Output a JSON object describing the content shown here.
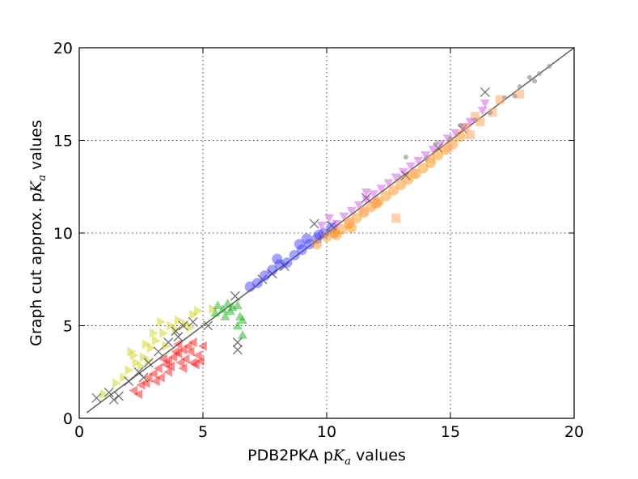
{
  "chart_data": {
    "type": "scatter",
    "xlabel": "PDB2PKA p",
    "xlabel_sym": "K",
    "xlabel_sub": "a",
    "xlabel_tail": " values",
    "ylabel": "Graph cut approx. p",
    "ylabel_sym": "K",
    "ylabel_sub": "a",
    "ylabel_tail": " values",
    "xlim": [
      0,
      20
    ],
    "ylim": [
      0,
      20
    ],
    "xticks": [
      0,
      5,
      10,
      15,
      20
    ],
    "yticks": [
      0,
      5,
      10,
      15,
      20
    ],
    "grid": true,
    "reference_line": {
      "from": [
        0.3,
        0.3
      ],
      "to": [
        20,
        20
      ],
      "color": "#666666"
    },
    "series": [
      {
        "marker": "triangle-left",
        "color": "#ff0000",
        "points": [
          [
            2.2,
            1.5
          ],
          [
            2.5,
            1.8
          ],
          [
            2.8,
            2.2
          ],
          [
            3.0,
            2.4
          ],
          [
            3.2,
            2.7
          ],
          [
            3.5,
            2.9
          ],
          [
            3.6,
            3.1
          ],
          [
            3.8,
            3.3
          ],
          [
            4.0,
            3.5
          ],
          [
            4.2,
            3.7
          ],
          [
            4.4,
            3.9
          ],
          [
            4.5,
            3.6
          ],
          [
            4.6,
            4.1
          ],
          [
            4.8,
            3.4
          ],
          [
            3.3,
            2.2
          ],
          [
            3.7,
            2.8
          ],
          [
            4.1,
            3.0
          ],
          [
            2.7,
            1.9
          ],
          [
            3.9,
            3.6
          ],
          [
            4.3,
            3.2
          ],
          [
            4.7,
            2.9
          ],
          [
            4.9,
            3.1
          ],
          [
            2.4,
            1.3
          ],
          [
            3.1,
            2.0
          ],
          [
            3.4,
            3.2
          ],
          [
            4.0,
            4.0
          ],
          [
            4.6,
            3.0
          ],
          [
            5.0,
            3.9
          ],
          [
            3.6,
            2.5
          ],
          [
            4.2,
            2.7
          ]
        ]
      },
      {
        "marker": "triangle-right",
        "color": "#cccc00",
        "points": [
          [
            1.0,
            1.3
          ],
          [
            1.5,
            1.9
          ],
          [
            2.0,
            2.6
          ],
          [
            2.3,
            3.0
          ],
          [
            2.6,
            3.3
          ],
          [
            2.9,
            3.8
          ],
          [
            3.1,
            4.2
          ],
          [
            3.4,
            4.6
          ],
          [
            3.7,
            5.0
          ],
          [
            4.0,
            5.3
          ],
          [
            4.3,
            5.1
          ],
          [
            4.6,
            5.6
          ],
          [
            2.2,
            3.4
          ],
          [
            2.7,
            4.0
          ],
          [
            3.0,
            4.6
          ],
          [
            3.3,
            5.2
          ],
          [
            1.8,
            2.2
          ],
          [
            2.5,
            2.8
          ],
          [
            3.5,
            3.9
          ],
          [
            4.8,
            5.8
          ],
          [
            5.4,
            5.9
          ],
          [
            2.1,
            3.6
          ],
          [
            3.9,
            4.8
          ],
          [
            4.5,
            4.9
          ],
          [
            2.8,
            3.1
          ]
        ]
      },
      {
        "marker": "x",
        "color": "#444444",
        "points": [
          [
            0.7,
            1.1
          ],
          [
            1.2,
            1.4
          ],
          [
            1.6,
            1.2
          ],
          [
            2.0,
            2.0
          ],
          [
            2.4,
            2.5
          ],
          [
            2.8,
            3.0
          ],
          [
            3.2,
            3.6
          ],
          [
            3.6,
            4.1
          ],
          [
            4.0,
            4.4
          ],
          [
            4.2,
            5.0
          ],
          [
            4.6,
            5.2
          ],
          [
            5.2,
            5.0
          ],
          [
            6.4,
            4.1
          ],
          [
            6.4,
            3.7
          ],
          [
            6.3,
            6.6
          ],
          [
            7.4,
            7.5
          ],
          [
            7.8,
            7.8
          ],
          [
            8.3,
            8.2
          ],
          [
            9.5,
            10.5
          ],
          [
            10.2,
            10.4
          ],
          [
            11.6,
            11.9
          ],
          [
            13.2,
            13.1
          ],
          [
            14.5,
            14.6
          ],
          [
            16.4,
            17.6
          ],
          [
            15.5,
            15.6
          ],
          [
            1.4,
            1.0
          ],
          [
            3.9,
            4.7
          ],
          [
            2.6,
            2.2
          ]
        ]
      },
      {
        "marker": "triangle-up",
        "color": "#00aa00",
        "points": [
          [
            5.5,
            5.7
          ],
          [
            5.8,
            5.9
          ],
          [
            6.0,
            6.2
          ],
          [
            6.2,
            6.0
          ],
          [
            6.4,
            6.1
          ],
          [
            6.5,
            5.5
          ],
          [
            6.6,
            5.3
          ],
          [
            6.6,
            4.5
          ],
          [
            6.4,
            5.0
          ],
          [
            5.9,
            5.5
          ],
          [
            6.1,
            5.8
          ],
          [
            5.6,
            6.1
          ]
        ]
      },
      {
        "marker": "circle",
        "color": "#3333ff",
        "points": [
          [
            6.9,
            7.1
          ],
          [
            7.2,
            7.3
          ],
          [
            7.5,
            7.7
          ],
          [
            7.8,
            8.0
          ],
          [
            8.1,
            8.3
          ],
          [
            8.4,
            8.4
          ],
          [
            8.7,
            8.8
          ],
          [
            9.0,
            9.1
          ],
          [
            9.3,
            9.4
          ],
          [
            9.6,
            9.7
          ],
          [
            9.9,
            10.0
          ],
          [
            10.2,
            10.3
          ],
          [
            8.9,
            9.4
          ],
          [
            9.2,
            9.7
          ],
          [
            8.0,
            8.6
          ],
          [
            9.7,
            9.9
          ]
        ]
      },
      {
        "marker": "circle",
        "color": "#ff8800",
        "points": [
          [
            9.6,
            9.4
          ],
          [
            10.0,
            9.8
          ],
          [
            10.3,
            10.0
          ],
          [
            10.6,
            10.2
          ],
          [
            10.9,
            10.5
          ],
          [
            11.2,
            10.8
          ],
          [
            11.5,
            11.1
          ],
          [
            11.8,
            11.4
          ],
          [
            12.1,
            11.7
          ],
          [
            12.4,
            12.0
          ],
          [
            12.7,
            12.3
          ],
          [
            13.0,
            12.6
          ],
          [
            13.3,
            12.9
          ],
          [
            13.6,
            13.2
          ],
          [
            13.9,
            13.5
          ],
          [
            14.2,
            13.8
          ],
          [
            14.5,
            14.2
          ],
          [
            14.8,
            14.5
          ],
          [
            15.1,
            14.8
          ],
          [
            15.4,
            15.2
          ],
          [
            11.0,
            10.3
          ],
          [
            12.0,
            11.6
          ],
          [
            10.4,
            9.9
          ]
        ]
      },
      {
        "marker": "square",
        "color": "#ffaa66",
        "points": [
          [
            12.8,
            10.8
          ],
          [
            15.8,
            15.3
          ],
          [
            16.7,
            16.5
          ],
          [
            17.0,
            17.2
          ],
          [
            16.2,
            16.0
          ],
          [
            17.8,
            17.5
          ],
          [
            15.6,
            15.7
          ],
          [
            12.0,
            11.6
          ],
          [
            11.5,
            11.2
          ],
          [
            13.5,
            13.2
          ],
          [
            14.2,
            14.0
          ],
          [
            14.9,
            14.6
          ],
          [
            10.9,
            10.6
          ],
          [
            16.0,
            16.3
          ]
        ]
      },
      {
        "marker": "triangle-down",
        "color": "#cc44dd",
        "points": [
          [
            10.4,
            10.5
          ],
          [
            10.7,
            10.9
          ],
          [
            11.0,
            11.2
          ],
          [
            11.3,
            11.5
          ],
          [
            11.6,
            11.8
          ],
          [
            11.9,
            12.1
          ],
          [
            12.2,
            12.4
          ],
          [
            12.5,
            12.7
          ],
          [
            12.8,
            13.0
          ],
          [
            13.1,
            13.3
          ],
          [
            13.4,
            13.6
          ],
          [
            13.7,
            13.9
          ],
          [
            14.0,
            14.2
          ],
          [
            14.3,
            14.5
          ],
          [
            14.6,
            14.8
          ],
          [
            14.9,
            15.1
          ],
          [
            15.2,
            15.4
          ],
          [
            15.5,
            15.7
          ],
          [
            15.8,
            16.0
          ],
          [
            16.3,
            16.6
          ],
          [
            16.4,
            17.0
          ],
          [
            9.8,
            10.4
          ],
          [
            10.1,
            10.8
          ],
          [
            11.6,
            12.2
          ]
        ]
      },
      {
        "marker": "dot",
        "color": "#999999",
        "points": [
          [
            13.0,
            13.0
          ],
          [
            14.0,
            14.0
          ],
          [
            14.4,
            14.8
          ],
          [
            15.0,
            15.1
          ],
          [
            15.4,
            15.8
          ],
          [
            16.0,
            16.1
          ],
          [
            16.6,
            16.5
          ],
          [
            17.2,
            17.3
          ],
          [
            17.8,
            17.9
          ],
          [
            18.2,
            18.4
          ],
          [
            18.6,
            18.6
          ],
          [
            19.0,
            19.0
          ],
          [
            13.2,
            14.1
          ],
          [
            17.6,
            17.4
          ],
          [
            18.4,
            18.2
          ]
        ]
      }
    ]
  }
}
